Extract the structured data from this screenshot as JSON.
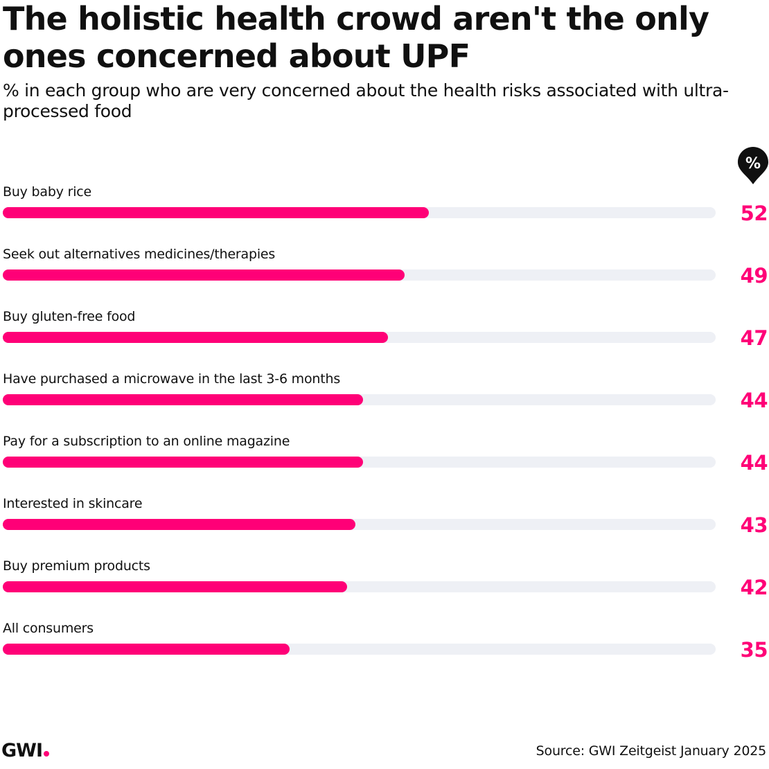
{
  "title": "The holistic health crowd aren't the only ones concerned about UPF",
  "subtitle": "% in each group who are very concerned about the health risks associated with ultra-processed food",
  "unit_badge": "%",
  "colors": {
    "accent": "#ff0077",
    "track": "#eef0f5",
    "text": "#101010"
  },
  "chart_data": {
    "type": "bar",
    "orientation": "horizontal",
    "xlim": [
      0,
      87
    ],
    "categories": [
      "Buy baby rice",
      "Seek out alternatives medicines/therapies",
      "Buy gluten-free food",
      "Have purchased a microwave in the last 3-6 months",
      "Pay for a subscription to an online magazine",
      "Interested in skincare",
      "Buy premium products",
      "All consumers"
    ],
    "values": [
      52,
      49,
      47,
      44,
      44,
      43,
      42,
      35
    ],
    "data_labels": [
      "52",
      "49",
      "47",
      "44",
      "44",
      "43",
      "42",
      "35"
    ],
    "grid": false,
    "legend": "none"
  },
  "footer": {
    "logo_text": "GWI",
    "source": "Source: GWI Zeitgeist January 2025"
  }
}
